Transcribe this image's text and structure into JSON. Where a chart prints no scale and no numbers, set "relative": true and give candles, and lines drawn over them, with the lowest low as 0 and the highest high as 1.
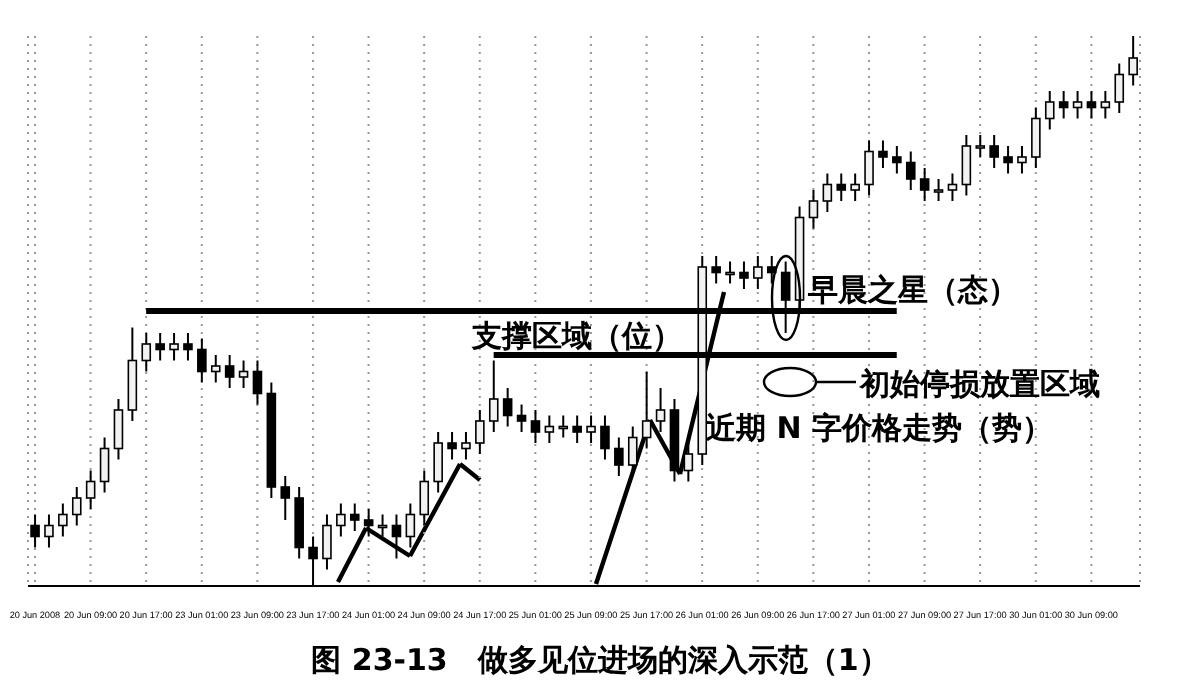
{
  "chart_data": {
    "type": "candlestick",
    "title": "图 23-13　做多见位进场的深入示范（1）",
    "relative": true,
    "color": "#000000",
    "grid": "x",
    "categories": [
      "20 Jun 2008",
      null,
      null,
      null,
      "20 Jun 09:00",
      null,
      null,
      null,
      "20 Jun 17:00",
      null,
      null,
      null,
      "23 Jun 01:00",
      null,
      null,
      null,
      "23 Jun 09:00",
      null,
      null,
      null,
      "23 Jun 17:00",
      null,
      null,
      null,
      "24 Jun 01:00",
      null,
      null,
      null,
      "24 Jun 09:00",
      null,
      null,
      null,
      "24 Jun 17:00",
      null,
      null,
      null,
      "25 Jun 01:00",
      null,
      null,
      null,
      "25 Jun 09:00",
      null,
      null,
      null,
      "25 Jun 17:00",
      null,
      null,
      null,
      "26 Jun 01:00",
      null,
      null,
      null,
      "26 Jun 09:00",
      null,
      null,
      null,
      "26 Jun 17:00",
      null,
      null,
      null,
      "27 Jun 01:00",
      null,
      null,
      null,
      "27 Jun 09:00",
      null,
      null,
      null,
      "27 Jun 17:00",
      null,
      null,
      null,
      "30 Jun 01:00",
      null,
      null,
      null,
      "30 Jun 09:00",
      null,
      null,
      null
    ],
    "ohlc": [
      [
        0.11,
        0.13,
        0.07,
        0.09
      ],
      [
        0.09,
        0.13,
        0.07,
        0.11
      ],
      [
        0.11,
        0.15,
        0.09,
        0.13
      ],
      [
        0.13,
        0.18,
        0.11,
        0.16
      ],
      [
        0.16,
        0.21,
        0.14,
        0.19
      ],
      [
        0.19,
        0.27,
        0.17,
        0.25
      ],
      [
        0.25,
        0.34,
        0.23,
        0.32
      ],
      [
        0.32,
        0.47,
        0.3,
        0.41
      ],
      [
        0.41,
        0.46,
        0.39,
        0.44
      ],
      [
        0.44,
        0.46,
        0.41,
        0.43
      ],
      [
        0.43,
        0.46,
        0.41,
        0.44
      ],
      [
        0.44,
        0.46,
        0.41,
        0.43
      ],
      [
        0.43,
        0.45,
        0.37,
        0.39
      ],
      [
        0.39,
        0.42,
        0.37,
        0.4
      ],
      [
        0.4,
        0.42,
        0.36,
        0.38
      ],
      [
        0.38,
        0.41,
        0.36,
        0.39
      ],
      [
        0.39,
        0.41,
        0.33,
        0.35
      ],
      [
        0.35,
        0.37,
        0.16,
        0.18
      ],
      [
        0.18,
        0.2,
        0.12,
        0.16
      ],
      [
        0.16,
        0.18,
        0.05,
        0.07
      ],
      [
        0.07,
        0.09,
        0,
        0.05
      ],
      [
        0.05,
        0.13,
        0.03,
        0.11
      ],
      [
        0.11,
        0.15,
        0.09,
        0.13
      ],
      [
        0.13,
        0.15,
        0.1,
        0.12
      ],
      [
        0.12,
        0.14,
        0.09,
        0.11
      ],
      [
        0.11,
        0.13,
        0.09,
        0.11
      ],
      [
        0.11,
        0.13,
        0.05,
        0.09
      ],
      [
        0.09,
        0.15,
        0.07,
        0.13
      ],
      [
        0.13,
        0.21,
        0.11,
        0.19
      ],
      [
        0.19,
        0.28,
        0.17,
        0.26
      ],
      [
        0.26,
        0.28,
        0.23,
        0.25
      ],
      [
        0.25,
        0.28,
        0.23,
        0.26
      ],
      [
        0.26,
        0.32,
        0.24,
        0.3
      ],
      [
        0.3,
        0.41,
        0.28,
        0.34
      ],
      [
        0.34,
        0.36,
        0.29,
        0.31
      ],
      [
        0.31,
        0.33,
        0.28,
        0.3
      ],
      [
        0.3,
        0.32,
        0.26,
        0.28
      ],
      [
        0.28,
        0.31,
        0.26,
        0.29
      ],
      [
        0.29,
        0.31,
        0.27,
        0.29
      ],
      [
        0.29,
        0.31,
        0.26,
        0.28
      ],
      [
        0.28,
        0.31,
        0.26,
        0.29
      ],
      [
        0.29,
        0.31,
        0.23,
        0.25
      ],
      [
        0.25,
        0.27,
        0.2,
        0.22
      ],
      [
        0.22,
        0.29,
        0.2,
        0.27
      ],
      [
        0.27,
        0.39,
        0.25,
        0.3
      ],
      [
        0.3,
        0.36,
        0.28,
        0.32
      ],
      [
        0.32,
        0.34,
        0.19,
        0.21
      ],
      [
        0.21,
        0.26,
        0.19,
        0.24
      ],
      [
        0.24,
        0.6,
        0.22,
        0.58
      ],
      [
        0.58,
        0.6,
        0.55,
        0.57
      ],
      [
        0.57,
        0.59,
        0.55,
        0.57
      ],
      [
        0.57,
        0.59,
        0.54,
        0.56
      ],
      [
        0.56,
        0.6,
        0.54,
        0.58
      ],
      [
        0.58,
        0.6,
        0.55,
        0.57
      ],
      [
        0.57,
        0.59,
        0.46,
        0.52
      ],
      [
        0.52,
        0.69,
        0.5,
        0.67
      ],
      [
        0.67,
        0.72,
        0.65,
        0.7
      ],
      [
        0.7,
        0.75,
        0.68,
        0.73
      ],
      [
        0.73,
        0.75,
        0.7,
        0.72
      ],
      [
        0.72,
        0.75,
        0.7,
        0.73
      ],
      [
        0.73,
        0.81,
        0.71,
        0.79
      ],
      [
        0.79,
        0.81,
        0.76,
        0.78
      ],
      [
        0.78,
        0.8,
        0.75,
        0.77
      ],
      [
        0.77,
        0.79,
        0.72,
        0.74
      ],
      [
        0.74,
        0.76,
        0.7,
        0.72
      ],
      [
        0.72,
        0.74,
        0.7,
        0.72
      ],
      [
        0.72,
        0.75,
        0.7,
        0.73
      ],
      [
        0.73,
        0.82,
        0.71,
        0.8
      ],
      [
        0.8,
        0.82,
        0.78,
        0.8
      ],
      [
        0.8,
        0.82,
        0.76,
        0.78
      ],
      [
        0.78,
        0.8,
        0.75,
        0.77
      ],
      [
        0.77,
        0.8,
        0.75,
        0.78
      ],
      [
        0.78,
        0.87,
        0.76,
        0.85
      ],
      [
        0.85,
        0.9,
        0.83,
        0.88
      ],
      [
        0.88,
        0.9,
        0.85,
        0.87
      ],
      [
        0.87,
        0.9,
        0.85,
        0.88
      ],
      [
        0.88,
        0.9,
        0.85,
        0.87
      ],
      [
        0.87,
        0.9,
        0.85,
        0.88
      ],
      [
        0.88,
        0.95,
        0.86,
        0.93
      ],
      [
        0.93,
        1,
        0.91,
        0.96
      ]
    ],
    "ref_lines": [
      {
        "axis": "y",
        "value": 0.5,
        "color": "#000000"
      },
      {
        "axis": "y",
        "value": 0.42,
        "color": "#000000"
      }
    ],
    "annotations": [
      "支撑区域（位）",
      "早晨之星（态）",
      "初始停损放置区域",
      "近期 N 字价格走势（势）"
    ]
  }
}
